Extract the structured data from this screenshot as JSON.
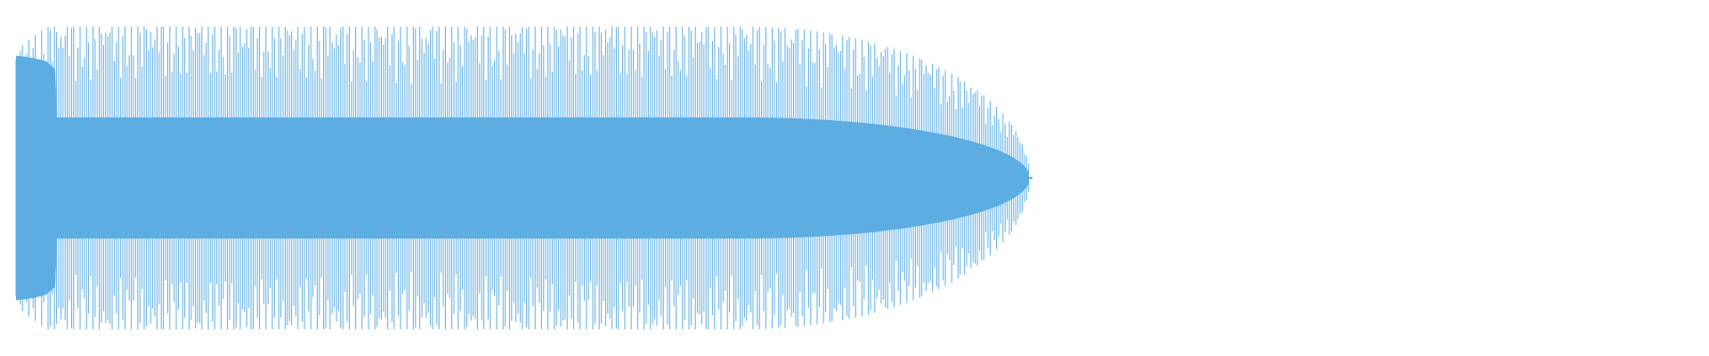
{
  "waveform": {
    "color": "#5dade2"
  }
}
